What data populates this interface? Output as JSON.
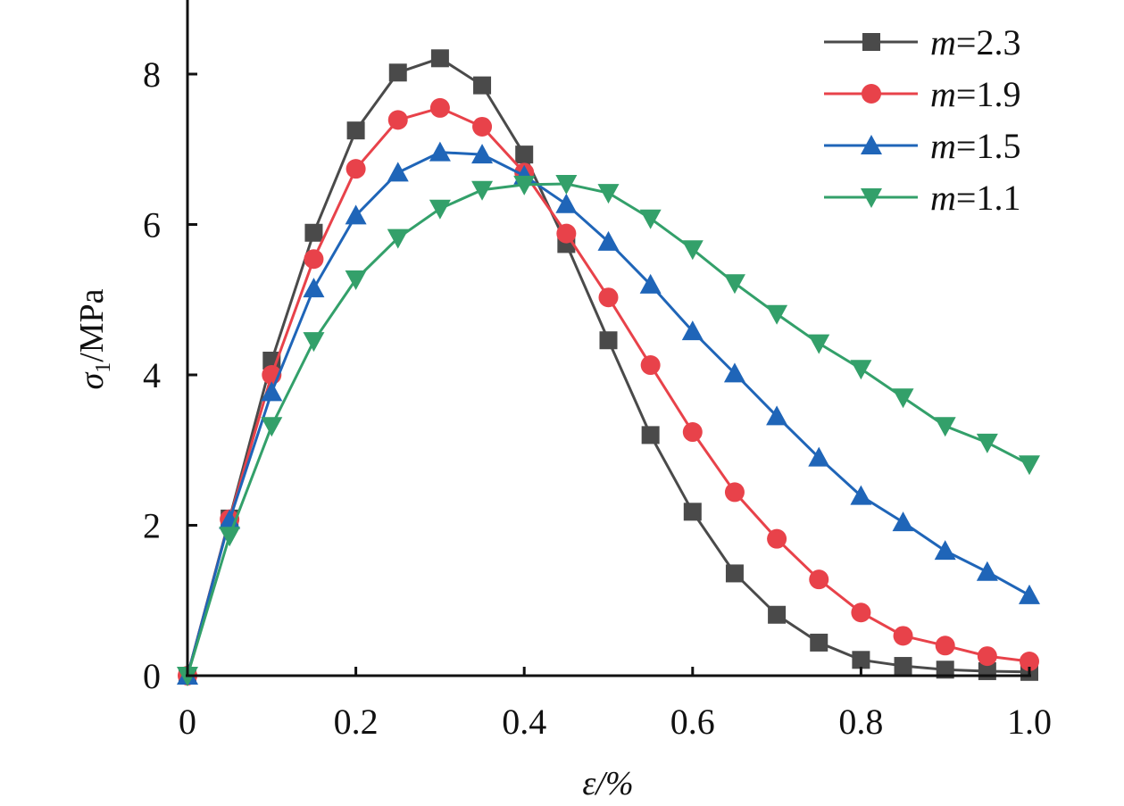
{
  "chart_data": {
    "type": "line",
    "title": "",
    "xlabel": "ε/%",
    "ylabel_symbol": "σ",
    "ylabel_subscript": "1",
    "ylabel_unit": "/MPa",
    "xlim": [
      0,
      1.0
    ],
    "ylim": [
      0,
      9
    ],
    "grid": false,
    "legend_position": "top-right",
    "x_ticks": [
      0,
      0.2,
      0.4,
      0.6,
      0.8,
      1.0
    ],
    "x_tick_labels": [
      "0",
      "0.2",
      "0.4",
      "0.6",
      "0.8",
      "1.0"
    ],
    "y_ticks": [
      0,
      2,
      4,
      6,
      8
    ],
    "y_tick_labels": [
      "0",
      "2",
      "4",
      "6",
      "8"
    ],
    "x": [
      0,
      0.05,
      0.1,
      0.15,
      0.2,
      0.25,
      0.3,
      0.35,
      0.4,
      0.45,
      0.5,
      0.55,
      0.6,
      0.65,
      0.7,
      0.75,
      0.8,
      0.85,
      0.9,
      0.95,
      1.0
    ],
    "series": [
      {
        "name": "m=2.3",
        "name_var": "m",
        "name_value": "=2.3",
        "color": "#4a4a4a",
        "marker": "square",
        "values": [
          0,
          2.09,
          4.19,
          5.89,
          7.25,
          8.02,
          8.21,
          7.85,
          6.93,
          5.74,
          4.46,
          3.2,
          2.18,
          1.36,
          0.81,
          0.44,
          0.21,
          0.13,
          0.08,
          0.06,
          0.05
        ]
      },
      {
        "name": "m=1.9",
        "name_var": "m",
        "name_value": "=1.9",
        "color": "#e8424a",
        "marker": "circle",
        "values": [
          0,
          2.08,
          4.0,
          5.54,
          6.74,
          7.39,
          7.55,
          7.3,
          6.69,
          5.88,
          5.03,
          4.13,
          3.24,
          2.44,
          1.82,
          1.28,
          0.84,
          0.53,
          0.4,
          0.26,
          0.19
        ]
      },
      {
        "name": "m=1.5",
        "name_var": "m",
        "name_value": "=1.5",
        "color": "#1f65b8",
        "marker": "triangle-up",
        "values": [
          0,
          2.07,
          3.77,
          5.15,
          6.12,
          6.69,
          6.96,
          6.93,
          6.65,
          6.27,
          5.77,
          5.2,
          4.58,
          4.02,
          3.45,
          2.9,
          2.39,
          2.04,
          1.66,
          1.38,
          1.07
        ]
      },
      {
        "name": "m=1.1",
        "name_var": "m",
        "name_value": "=1.1",
        "color": "#33a06a",
        "marker": "triangle-down",
        "values": [
          0,
          1.86,
          3.32,
          4.45,
          5.27,
          5.82,
          6.21,
          6.46,
          6.53,
          6.54,
          6.42,
          6.08,
          5.67,
          5.22,
          4.81,
          4.42,
          4.08,
          3.7,
          3.32,
          3.1,
          2.81
        ]
      }
    ]
  }
}
